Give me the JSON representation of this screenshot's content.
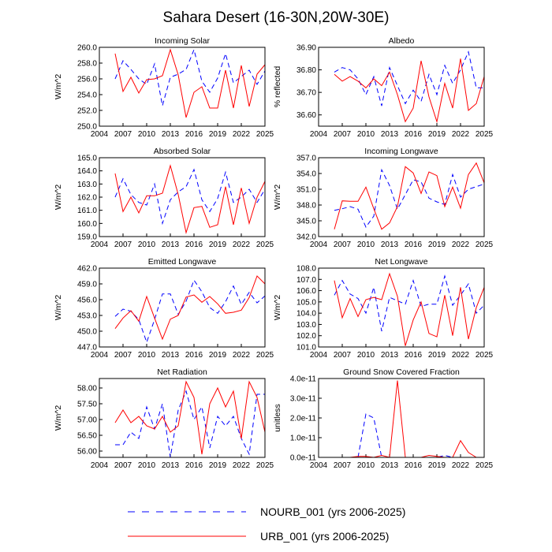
{
  "figure": {
    "title": "Sahara Desert (16-30N,20W-30E)",
    "legend": [
      {
        "name": "NOURB_001 (yrs 2006-2025)",
        "color": "#0000ff",
        "dash": "dashed"
      },
      {
        "name": "URB_001 (yrs 2006-2025)",
        "color": "#ff0000",
        "dash": "solid"
      }
    ]
  },
  "chart_data": [
    {
      "type": "line",
      "title": "Incoming Solar",
      "ylabel": "W/m^2",
      "xlim": [
        2004,
        2025
      ],
      "xticks": [
        2004,
        2007,
        2010,
        2013,
        2016,
        2019,
        2022,
        2025
      ],
      "ylim": [
        250,
        260
      ],
      "yticks": [
        250,
        252,
        254,
        256,
        258,
        260
      ],
      "ytick_labels": [
        "250.0",
        "252.0",
        "254.0",
        "256.0",
        "258.0",
        "260.0"
      ],
      "x": [
        2006,
        2007,
        2008,
        2009,
        2010,
        2011,
        2012,
        2013,
        2014,
        2015,
        2016,
        2017,
        2018,
        2019,
        2020,
        2021,
        2022,
        2023,
        2024,
        2025
      ],
      "series": [
        {
          "name": "NOURB_001",
          "values": [
            256.0,
            258.3,
            257.2,
            256.0,
            255.3,
            257.9,
            252.6,
            256.2,
            256.6,
            257.2,
            259.7,
            255.7,
            254.3,
            256.1,
            259.2,
            255.5,
            256.3,
            257.1,
            255.3,
            257.0
          ]
        },
        {
          "name": "URB_001",
          "values": [
            259.2,
            254.4,
            256.2,
            254.2,
            255.9,
            256.0,
            256.4,
            259.7,
            256.5,
            251.1,
            254.3,
            255.0,
            252.3,
            252.3,
            257.1,
            252.3,
            257.7,
            252.5,
            256.6,
            257.8
          ]
        }
      ]
    },
    {
      "type": "line",
      "title": "Albedo",
      "ylabel": "% reflected",
      "xlim": [
        2004,
        2025
      ],
      "xticks": [
        2004,
        2007,
        2010,
        2013,
        2016,
        2019,
        2022,
        2025
      ],
      "ylim": [
        36.55,
        36.9
      ],
      "yticks": [
        36.6,
        36.7,
        36.8,
        36.9
      ],
      "ytick_labels": [
        "36.60",
        "36.70",
        "36.80",
        "36.90"
      ],
      "x": [
        2006,
        2007,
        2008,
        2009,
        2010,
        2011,
        2012,
        2013,
        2014,
        2015,
        2016,
        2017,
        2018,
        2019,
        2020,
        2021,
        2022,
        2023,
        2024,
        2025
      ],
      "series": [
        {
          "name": "NOURB_001",
          "values": [
            36.79,
            36.81,
            36.8,
            36.76,
            36.69,
            36.77,
            36.64,
            36.81,
            36.73,
            36.65,
            36.71,
            36.66,
            36.78,
            36.69,
            36.82,
            36.74,
            36.8,
            36.88,
            36.72,
            36.72
          ]
        },
        {
          "name": "URB_001",
          "values": [
            36.78,
            36.75,
            36.77,
            36.75,
            36.72,
            36.76,
            36.73,
            36.79,
            36.69,
            36.57,
            36.63,
            36.84,
            36.68,
            36.57,
            36.74,
            36.63,
            36.85,
            36.62,
            36.65,
            36.77
          ]
        }
      ]
    },
    {
      "type": "line",
      "title": "Absorbed Solar",
      "ylabel": "W/m^2",
      "xlim": [
        2004,
        2025
      ],
      "xticks": [
        2004,
        2007,
        2010,
        2013,
        2016,
        2019,
        2022,
        2025
      ],
      "ylim": [
        159,
        165
      ],
      "yticks": [
        159,
        160,
        161,
        162,
        163,
        164,
        165
      ],
      "ytick_labels": [
        "159.0",
        "160.0",
        "161.0",
        "162.0",
        "163.0",
        "164.0",
        "165.0"
      ],
      "x": [
        2006,
        2007,
        2008,
        2009,
        2010,
        2011,
        2012,
        2013,
        2014,
        2015,
        2016,
        2017,
        2018,
        2019,
        2020,
        2021,
        2022,
        2023,
        2024,
        2025
      ],
      "series": [
        {
          "name": "NOURB_001",
          "values": [
            162.0,
            163.4,
            162.2,
            161.6,
            161.4,
            163.0,
            160.0,
            161.8,
            162.4,
            162.8,
            164.1,
            161.8,
            160.9,
            161.9,
            163.9,
            161.6,
            162.0,
            162.6,
            161.6,
            162.6
          ]
        },
        {
          "name": "URB_001",
          "values": [
            163.8,
            160.9,
            162.0,
            160.8,
            162.1,
            162.1,
            162.3,
            164.4,
            162.2,
            159.3,
            161.2,
            161.3,
            159.7,
            159.9,
            162.8,
            159.9,
            162.7,
            160.0,
            162.0,
            163.2
          ]
        }
      ]
    },
    {
      "type": "line",
      "title": "Incoming Longwave",
      "ylabel": "W/m^2",
      "xlim": [
        2004,
        2025
      ],
      "xticks": [
        2004,
        2007,
        2010,
        2013,
        2016,
        2019,
        2022,
        2025
      ],
      "ylim": [
        342,
        357
      ],
      "yticks": [
        342,
        345,
        348,
        351,
        354,
        357
      ],
      "ytick_labels": [
        "342.0",
        "345.0",
        "348.0",
        "351.0",
        "354.0",
        "357.0"
      ],
      "x": [
        2006,
        2007,
        2008,
        2009,
        2010,
        2011,
        2012,
        2013,
        2014,
        2015,
        2016,
        2017,
        2018,
        2019,
        2020,
        2021,
        2022,
        2023,
        2024,
        2025
      ],
      "series": [
        {
          "name": "NOURB_001",
          "values": [
            347.0,
            347.3,
            347.7,
            347.2,
            343.8,
            345.9,
            354.7,
            351.7,
            347.2,
            350.0,
            352.8,
            352.4,
            349.3,
            348.6,
            348.1,
            353.8,
            349.5,
            351.0,
            351.5,
            352.0
          ]
        },
        {
          "name": "URB_001",
          "values": [
            343.4,
            348.8,
            348.7,
            348.7,
            351.4,
            347.3,
            343.4,
            344.6,
            347.7,
            355.3,
            354.1,
            350.2,
            354.3,
            353.6,
            347.7,
            351.4,
            347.4,
            353.8,
            356.0,
            352.2
          ]
        }
      ]
    },
    {
      "type": "line",
      "title": "Emitted Longwave",
      "ylabel": "W/m^2",
      "xlim": [
        2004,
        2025
      ],
      "xticks": [
        2004,
        2007,
        2010,
        2013,
        2016,
        2019,
        2022,
        2025
      ],
      "ylim": [
        447,
        462
      ],
      "yticks": [
        447,
        450,
        453,
        456,
        459,
        462
      ],
      "ytick_labels": [
        "447.0",
        "450.0",
        "453.0",
        "456.0",
        "459.0",
        "462.0"
      ],
      "x": [
        2006,
        2007,
        2008,
        2009,
        2010,
        2011,
        2012,
        2013,
        2014,
        2015,
        2016,
        2017,
        2018,
        2019,
        2020,
        2021,
        2022,
        2023,
        2024,
        2025
      ],
      "series": [
        {
          "name": "NOURB_001",
          "values": [
            452.8,
            454.2,
            453.8,
            452.2,
            447.9,
            452.2,
            457.1,
            457.1,
            453.2,
            455.7,
            459.7,
            457.5,
            454.5,
            453.4,
            455.6,
            458.6,
            455.1,
            457.4,
            455.4,
            456.7
          ]
        },
        {
          "name": "URB_001",
          "values": [
            450.5,
            452.5,
            453.9,
            451.9,
            456.6,
            452.5,
            448.5,
            452.3,
            453.0,
            456.5,
            456.9,
            455.5,
            456.6,
            455.2,
            453.4,
            453.6,
            454.0,
            456.4,
            460.5,
            459.0
          ]
        }
      ]
    },
    {
      "type": "line",
      "title": "Net Longwave",
      "ylabel": "W/m^2",
      "xlim": [
        2004,
        2025
      ],
      "xticks": [
        2004,
        2007,
        2010,
        2013,
        2016,
        2019,
        2022,
        2025
      ],
      "ylim": [
        101,
        108
      ],
      "yticks": [
        101,
        102,
        103,
        104,
        105,
        106,
        107,
        108
      ],
      "ytick_labels": [
        "101.0",
        "102.0",
        "103.0",
        "104.0",
        "105.0",
        "106.0",
        "107.0",
        "108.0"
      ],
      "x": [
        2006,
        2007,
        2008,
        2009,
        2010,
        2011,
        2012,
        2013,
        2014,
        2015,
        2016,
        2017,
        2018,
        2019,
        2020,
        2021,
        2022,
        2023,
        2024,
        2025
      ],
      "series": [
        {
          "name": "NOURB_001",
          "values": [
            105.6,
            106.9,
            105.7,
            105.3,
            104.0,
            106.3,
            102.4,
            105.4,
            105.1,
            104.8,
            106.9,
            104.6,
            104.8,
            104.8,
            107.3,
            104.7,
            105.6,
            106.6,
            104.0,
            104.7
          ]
        },
        {
          "name": "URB_001",
          "values": [
            106.9,
            103.6,
            105.3,
            103.7,
            105.2,
            105.4,
            105.2,
            107.5,
            105.5,
            101.1,
            103.4,
            105.0,
            102.2,
            101.9,
            105.6,
            102.0,
            106.3,
            101.7,
            104.5,
            106.3
          ]
        }
      ]
    },
    {
      "type": "line",
      "title": "Net Radiation",
      "ylabel": "W/m^2",
      "xlim": [
        2004,
        2025
      ],
      "xticks": [
        2004,
        2007,
        2010,
        2013,
        2016,
        2019,
        2022,
        2025
      ],
      "ylim": [
        55.8,
        58.3
      ],
      "yticks": [
        56,
        56.5,
        57,
        57.5,
        58
      ],
      "ytick_labels": [
        "56.00",
        "56.50",
        "57.00",
        "57.50",
        "58.00"
      ],
      "x": [
        2006,
        2007,
        2008,
        2009,
        2010,
        2011,
        2012,
        2013,
        2014,
        2015,
        2016,
        2017,
        2018,
        2019,
        2020,
        2021,
        2022,
        2023,
        2024,
        2025
      ],
      "series": [
        {
          "name": "NOURB_001",
          "values": [
            56.2,
            56.2,
            56.6,
            56.4,
            57.4,
            56.7,
            57.5,
            55.8,
            57.3,
            57.9,
            57.0,
            57.4,
            56.1,
            57.1,
            56.8,
            57.1,
            56.4,
            55.9,
            57.8,
            57.8
          ]
        },
        {
          "name": "URB_001",
          "values": [
            56.9,
            57.3,
            56.9,
            57.1,
            56.8,
            56.7,
            57.1,
            56.6,
            56.8,
            58.2,
            57.7,
            55.9,
            57.5,
            58.0,
            57.4,
            57.9,
            56.4,
            58.2,
            57.7,
            56.6
          ]
        }
      ]
    },
    {
      "type": "line",
      "title": "Ground Snow Covered Fraction",
      "ylabel": "unitless",
      "xlim": [
        2004,
        2025
      ],
      "xticks": [
        2004,
        2007,
        2010,
        2013,
        2016,
        2019,
        2022,
        2025
      ],
      "ylim": [
        0,
        4e-11
      ],
      "yticks": [
        0,
        1e-11,
        2e-11,
        3e-11,
        4e-11
      ],
      "ytick_labels": [
        "0.0e-11",
        "1.0e-11",
        "2.0e-11",
        "3.0e-11",
        "4.0e-11"
      ],
      "x": [
        2006,
        2007,
        2008,
        2009,
        2010,
        2011,
        2012,
        2013,
        2014,
        2015,
        2016,
        2017,
        2018,
        2019,
        2020,
        2021,
        2022,
        2023,
        2024,
        2025
      ],
      "series": [
        {
          "name": "NOURB_001",
          "values": [
            0,
            0,
            0,
            0,
            2.2e-11,
            2e-11,
            0,
            0,
            0,
            0,
            0,
            0,
            0,
            0,
            1e-12,
            0,
            0,
            0,
            0,
            0
          ]
        },
        {
          "name": "URB_001",
          "values": [
            0,
            0,
            0,
            5e-13,
            5e-13,
            0,
            1e-12,
            0,
            3.9e-11,
            0,
            0,
            0,
            1e-12,
            5e-13,
            0,
            0,
            8.5e-12,
            2.5e-12,
            0,
            0
          ]
        }
      ]
    }
  ]
}
